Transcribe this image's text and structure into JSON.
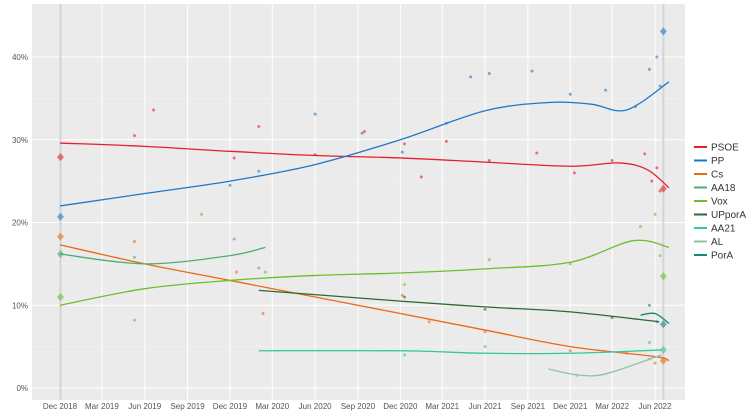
{
  "chart_data": {
    "type": "scatter",
    "title": "",
    "xlabel": "",
    "ylabel": "",
    "xlim": [
      "2018-11-01",
      "2022-08-01"
    ],
    "ylim": [
      0,
      45
    ],
    "y_ticks": [
      0,
      10,
      20,
      30,
      40
    ],
    "y_tick_labels": [
      "0%",
      "10%",
      "20%",
      "30%",
      "40%"
    ],
    "x_ticks": [
      "2018-12-01",
      "2019-03-01",
      "2019-06-01",
      "2019-09-01",
      "2019-12-01",
      "2020-03-01",
      "2020-06-01",
      "2020-09-01",
      "2020-12-01",
      "2021-03-01",
      "2021-06-01",
      "2021-09-01",
      "2021-12-01",
      "2022-03-01",
      "2022-06-01"
    ],
    "x_tick_labels": [
      "Dec 2018",
      "Mar 2019",
      "Jun 2019",
      "Sep 2019",
      "Dec 2019",
      "Mar 2020",
      "Jun 2020",
      "Sep 2020",
      "Dec 2020",
      "Mar 2021",
      "Jun 2021",
      "Sep 2021",
      "Dec 2021",
      "Mar 2022",
      "Jun 2022"
    ],
    "grid": true,
    "legend_position": "right",
    "background": "#ebebeb",
    "election_dates": [
      "2018-12-02",
      "2022-06-19"
    ],
    "series": [
      {
        "name": "PSOE",
        "color": "#e4202c",
        "trend": [
          [
            "2018-12-01",
            29.6
          ],
          [
            "2019-06-01",
            29.2
          ],
          [
            "2019-12-01",
            28.6
          ],
          [
            "2020-06-01",
            28.1
          ],
          [
            "2020-12-01",
            27.8
          ],
          [
            "2021-06-01",
            27.3
          ],
          [
            "2021-12-01",
            26.8
          ],
          [
            "2022-03-15",
            27.2
          ],
          [
            "2022-05-15",
            26.4
          ],
          [
            "2022-07-01",
            24.2
          ]
        ],
        "polls": [
          [
            "2019-05-10",
            30.5
          ],
          [
            "2019-06-20",
            33.6
          ],
          [
            "2019-12-10",
            27.8
          ],
          [
            "2020-02-01",
            31.6
          ],
          [
            "2020-06-01",
            28.2
          ],
          [
            "2020-09-15",
            31.0
          ],
          [
            "2020-12-10",
            29.5
          ],
          [
            "2021-01-15",
            25.5
          ],
          [
            "2021-03-10",
            29.8
          ],
          [
            "2021-06-10",
            27.5
          ],
          [
            "2021-09-20",
            28.4
          ],
          [
            "2021-12-10",
            26.0
          ],
          [
            "2022-03-01",
            27.5
          ],
          [
            "2022-05-10",
            28.3
          ],
          [
            "2022-05-25",
            25.0
          ],
          [
            "2022-06-05",
            26.6
          ],
          [
            "2022-06-12",
            23.8
          ]
        ],
        "result": [
          [
            "2018-12-02",
            27.9
          ],
          [
            "2022-06-19",
            24.1
          ]
        ]
      },
      {
        "name": "PP",
        "color": "#1e78c8",
        "trend": [
          [
            "2018-12-01",
            22.0
          ],
          [
            "2019-06-01",
            23.5
          ],
          [
            "2019-12-01",
            25.0
          ],
          [
            "2020-06-01",
            27.0
          ],
          [
            "2020-12-01",
            30.0
          ],
          [
            "2021-06-01",
            33.5
          ],
          [
            "2021-10-15",
            34.5
          ],
          [
            "2022-01-15",
            34.3
          ],
          [
            "2022-04-01",
            33.6
          ],
          [
            "2022-07-01",
            37.0
          ]
        ],
        "polls": [
          [
            "2019-12-01",
            24.5
          ],
          [
            "2020-02-01",
            26.2
          ],
          [
            "2020-06-01",
            33.1
          ],
          [
            "2020-09-10",
            30.8
          ],
          [
            "2020-12-05",
            28.5
          ],
          [
            "2021-03-10",
            32.0
          ],
          [
            "2021-05-01",
            37.6
          ],
          [
            "2021-06-10",
            38.0
          ],
          [
            "2021-09-10",
            38.3
          ],
          [
            "2021-12-01",
            35.5
          ],
          [
            "2022-02-15",
            36.0
          ],
          [
            "2022-04-20",
            34.0
          ],
          [
            "2022-05-20",
            38.5
          ],
          [
            "2022-06-05",
            40.0
          ],
          [
            "2022-06-12",
            36.5
          ]
        ],
        "result": [
          [
            "2018-12-02",
            20.7
          ],
          [
            "2022-06-19",
            43.1
          ]
        ]
      },
      {
        "name": "Cs",
        "color": "#eb6a12",
        "trend": [
          [
            "2018-12-01",
            17.3
          ],
          [
            "2019-06-01",
            15.0
          ],
          [
            "2019-12-01",
            13.0
          ],
          [
            "2020-06-01",
            11.0
          ],
          [
            "2020-12-01",
            9.0
          ],
          [
            "2021-06-01",
            7.0
          ],
          [
            "2021-12-01",
            5.0
          ],
          [
            "2022-06-01",
            3.8
          ],
          [
            "2022-07-01",
            3.3
          ]
        ],
        "polls": [
          [
            "2019-05-10",
            17.7
          ],
          [
            "2019-12-15",
            14.0
          ],
          [
            "2020-02-10",
            9.0
          ],
          [
            "2020-12-05",
            11.2
          ],
          [
            "2021-02-01",
            8.0
          ],
          [
            "2021-06-01",
            6.8
          ],
          [
            "2021-12-01",
            4.5
          ],
          [
            "2022-04-01",
            4.2
          ],
          [
            "2022-06-01",
            3.0
          ]
        ],
        "result": [
          [
            "2018-12-02",
            18.3
          ],
          [
            "2022-06-19",
            3.3
          ]
        ]
      },
      {
        "name": "AA18",
        "color": "#4cae72",
        "trend": [
          [
            "2018-12-01",
            16.2
          ],
          [
            "2019-06-01",
            15.0
          ],
          [
            "2019-12-01",
            16.0
          ],
          [
            "2020-02-15",
            17.0
          ]
        ],
        "polls": [
          [
            "2019-05-10",
            15.8
          ],
          [
            "2019-12-10",
            18.0
          ],
          [
            "2020-02-01",
            14.5
          ]
        ],
        "result": [
          [
            "2018-12-02",
            16.2
          ]
        ]
      },
      {
        "name": "Vox",
        "color": "#6abf2a",
        "trend": [
          [
            "2018-12-01",
            10.0
          ],
          [
            "2019-06-01",
            12.0
          ],
          [
            "2019-12-01",
            13.0
          ],
          [
            "2020-06-01",
            13.6
          ],
          [
            "2020-12-01",
            13.9
          ],
          [
            "2021-06-01",
            14.4
          ],
          [
            "2021-12-01",
            15.2
          ],
          [
            "2022-04-15",
            17.8
          ],
          [
            "2022-07-01",
            17.0
          ]
        ],
        "polls": [
          [
            "2019-05-10",
            8.2
          ],
          [
            "2019-10-01",
            21.0
          ],
          [
            "2020-02-15",
            14.0
          ],
          [
            "2020-12-10",
            12.5
          ],
          [
            "2021-06-10",
            15.5
          ],
          [
            "2021-12-01",
            15.0
          ],
          [
            "2022-05-01",
            19.5
          ],
          [
            "2022-06-01",
            21.0
          ],
          [
            "2022-06-12",
            16.0
          ]
        ],
        "result": [
          [
            "2018-12-02",
            11.0
          ],
          [
            "2022-06-19",
            13.5
          ]
        ]
      },
      {
        "name": "UPporA",
        "color": "#2b6a38",
        "trend": [
          [
            "2020-02-01",
            11.8
          ],
          [
            "2020-12-01",
            10.5
          ],
          [
            "2021-06-01",
            9.8
          ],
          [
            "2021-12-01",
            9.2
          ],
          [
            "2022-06-10",
            8.0
          ]
        ],
        "polls": [
          [
            "2020-12-10",
            11.0
          ],
          [
            "2021-06-01",
            9.5
          ],
          [
            "2022-03-01",
            8.5
          ]
        ],
        "result": []
      },
      {
        "name": "AA21",
        "color": "#33c896",
        "trend": [
          [
            "2020-02-01",
            4.5
          ],
          [
            "2020-12-01",
            4.5
          ],
          [
            "2021-06-01",
            4.2
          ],
          [
            "2021-12-01",
            4.2
          ],
          [
            "2022-06-15",
            4.6
          ]
        ],
        "polls": [
          [
            "2020-12-10",
            4.0
          ],
          [
            "2021-06-01",
            5.0
          ],
          [
            "2022-05-20",
            5.5
          ]
        ],
        "result": [
          [
            "2022-06-19",
            4.6
          ]
        ]
      },
      {
        "name": "AL",
        "color": "#8cc4a2",
        "trend": [
          [
            "2021-10-15",
            2.3
          ],
          [
            "2021-12-15",
            1.6
          ],
          [
            "2022-02-15",
            1.7
          ],
          [
            "2022-06-15",
            4.0
          ]
        ],
        "polls": [
          [
            "2021-12-15",
            1.5
          ],
          [
            "2022-05-20",
            3.5
          ]
        ],
        "result": []
      },
      {
        "name": "PorA",
        "color": "#0f8a78",
        "trend": [
          [
            "2022-05-01",
            8.8
          ],
          [
            "2022-06-01",
            9.0
          ],
          [
            "2022-07-01",
            7.8
          ]
        ],
        "polls": [
          [
            "2022-05-20",
            10.0
          ],
          [
            "2022-06-05",
            8.0
          ]
        ],
        "result": [
          [
            "2022-06-19",
            7.7
          ]
        ]
      }
    ]
  }
}
